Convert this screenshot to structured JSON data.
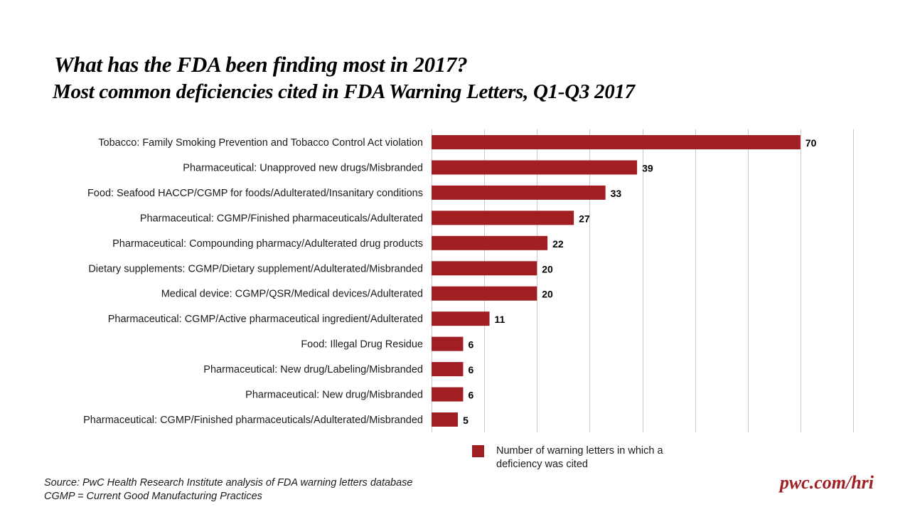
{
  "header": {
    "title": "What has the FDA been finding most in 2017?",
    "subtitle": "Most common deficiencies cited in FDA Warning Letters, Q1-Q3 2017"
  },
  "colors": {
    "bar": "#A11F23",
    "brand": "#A11F23",
    "gridline": "#C8C8C8"
  },
  "chart_data": {
    "type": "bar",
    "orientation": "horizontal",
    "title": "What has the FDA been finding most in 2017?",
    "subtitle": "Most common deficiencies cited in FDA Warning Letters, Q1-Q3 2017",
    "xlabel": "",
    "ylabel": "",
    "xlim": [
      0,
      80
    ],
    "grid_step": 10,
    "grid": true,
    "axis_tick_labels_shown": false,
    "legend_position": "bottom",
    "categories": [
      "Tobacco: Family Smoking Prevention and Tobacco Control Act violation",
      "Pharmaceutical: Unapproved new drugs/Misbranded",
      "Food: Seafood HACCP/CGMP for foods/Adulterated/Insanitary conditions",
      "Pharmaceutical: CGMP/Finished pharmaceuticals/Adulterated",
      "Pharmaceutical: Compounding pharmacy/Adulterated drug products",
      "Dietary supplements: CGMP/Dietary supplement/Adulterated/Misbranded",
      "Medical device: CGMP/QSR/Medical devices/Adulterated",
      "Pharmaceutical: CGMP/Active pharmaceutical ingredient/Adulterated",
      "Food: Illegal Drug Residue",
      "Pharmaceutical: New drug/Labeling/Misbranded",
      "Pharmaceutical: New drug/Misbranded",
      "Pharmaceutical: CGMP/Finished pharmaceuticals/Adulterated/Misbranded"
    ],
    "series": [
      {
        "name": "Number of warning letters in which a deficiency was cited",
        "values": [
          70,
          39,
          33,
          27,
          22,
          20,
          20,
          11,
          6,
          6,
          6,
          5
        ]
      }
    ]
  },
  "legend": {
    "label": "Number of warning letters in which a deficiency was cited"
  },
  "footer": {
    "source": "Source: PwC  Health Research Institute analysis of FDA warning letters database",
    "note": "CGMP = Current Good Manufacturing Practices",
    "brand_link": "pwc.com/hri"
  }
}
